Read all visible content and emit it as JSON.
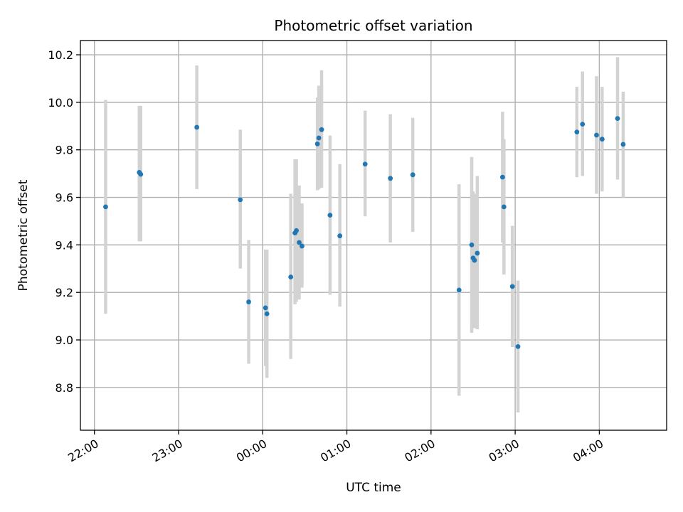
{
  "chart_data": {
    "type": "scatter",
    "title": "Photometric offset variation",
    "xlabel": "UTC time",
    "ylabel": "Photometric offset",
    "grid": true,
    "x_unit": "UTC time (HH:MM); times after midnight belong to the following day",
    "xlim": [
      "21:50",
      "04:48"
    ],
    "ylim": [
      8.62,
      10.26
    ],
    "x_ticks": [
      "22:00",
      "23:00",
      "00:00",
      "01:00",
      "02:00",
      "03:00",
      "04:00"
    ],
    "y_ticks": [
      "8.8",
      "9.0",
      "9.2",
      "9.4",
      "9.6",
      "9.8",
      "10.0",
      "10.2"
    ],
    "colors": {
      "marker": "#1f77b4",
      "errorbar": "#d3d3d3"
    },
    "points": [
      {
        "x": "22:08",
        "y": 9.56,
        "ylow": 9.11,
        "yhigh": 10.01
      },
      {
        "x": "22:32",
        "y": 9.705,
        "ylow": 9.415,
        "yhigh": 9.985
      },
      {
        "x": "22:33",
        "y": 9.697,
        "ylow": 9.415,
        "yhigh": 9.985
      },
      {
        "x": "23:13",
        "y": 9.895,
        "ylow": 9.635,
        "yhigh": 10.155
      },
      {
        "x": "23:44",
        "y": 9.59,
        "ylow": 9.3,
        "yhigh": 9.885
      },
      {
        "x": "23:50",
        "y": 9.16,
        "ylow": 8.9,
        "yhigh": 9.42
      },
      {
        "x": "00:02",
        "y": 9.135,
        "ylow": 8.89,
        "yhigh": 9.38
      },
      {
        "x": "00:03",
        "y": 9.11,
        "ylow": 8.84,
        "yhigh": 9.38
      },
      {
        "x": "00:20",
        "y": 9.265,
        "ylow": 8.92,
        "yhigh": 9.615
      },
      {
        "x": "00:23",
        "y": 9.45,
        "ylow": 9.15,
        "yhigh": 9.76
      },
      {
        "x": "00:24",
        "y": 9.46,
        "ylow": 9.16,
        "yhigh": 9.76
      },
      {
        "x": "00:26",
        "y": 9.41,
        "ylow": 9.17,
        "yhigh": 9.65
      },
      {
        "x": "00:28",
        "y": 9.395,
        "ylow": 9.22,
        "yhigh": 9.575
      },
      {
        "x": "00:39",
        "y": 9.825,
        "ylow": 9.63,
        "yhigh": 10.02
      },
      {
        "x": "00:40",
        "y": 9.85,
        "ylow": 9.635,
        "yhigh": 10.07
      },
      {
        "x": "00:42",
        "y": 9.885,
        "ylow": 9.64,
        "yhigh": 10.135
      },
      {
        "x": "00:48",
        "y": 9.525,
        "ylow": 9.19,
        "yhigh": 9.86
      },
      {
        "x": "00:55",
        "y": 9.438,
        "ylow": 9.14,
        "yhigh": 9.74
      },
      {
        "x": "01:13",
        "y": 9.74,
        "ylow": 9.52,
        "yhigh": 9.965
      },
      {
        "x": "01:31",
        "y": 9.68,
        "ylow": 9.41,
        "yhigh": 9.95
      },
      {
        "x": "01:47",
        "y": 9.695,
        "ylow": 9.455,
        "yhigh": 9.935
      },
      {
        "x": "02:20",
        "y": 9.21,
        "ylow": 8.765,
        "yhigh": 9.655
      },
      {
        "x": "02:29",
        "y": 9.4,
        "ylow": 9.03,
        "yhigh": 9.77
      },
      {
        "x": "02:30",
        "y": 9.345,
        "ylow": 9.06,
        "yhigh": 9.625
      },
      {
        "x": "02:31",
        "y": 9.335,
        "ylow": 9.05,
        "yhigh": 9.615
      },
      {
        "x": "02:33",
        "y": 9.365,
        "ylow": 9.045,
        "yhigh": 9.69
      },
      {
        "x": "02:51",
        "y": 9.685,
        "ylow": 9.41,
        "yhigh": 9.96
      },
      {
        "x": "02:52",
        "y": 9.56,
        "ylow": 9.275,
        "yhigh": 9.845
      },
      {
        "x": "02:58",
        "y": 9.225,
        "ylow": 8.97,
        "yhigh": 9.48
      },
      {
        "x": "03:02",
        "y": 8.972,
        "ylow": 8.695,
        "yhigh": 9.25
      },
      {
        "x": "03:44",
        "y": 9.875,
        "ylow": 9.685,
        "yhigh": 10.065
      },
      {
        "x": "03:48",
        "y": 9.908,
        "ylow": 9.69,
        "yhigh": 10.13
      },
      {
        "x": "03:58",
        "y": 9.862,
        "ylow": 9.615,
        "yhigh": 10.11
      },
      {
        "x": "04:02",
        "y": 9.845,
        "ylow": 9.625,
        "yhigh": 10.065
      },
      {
        "x": "04:13",
        "y": 9.932,
        "ylow": 9.675,
        "yhigh": 10.19
      },
      {
        "x": "04:17",
        "y": 9.823,
        "ylow": 9.6,
        "yhigh": 10.045
      }
    ]
  }
}
